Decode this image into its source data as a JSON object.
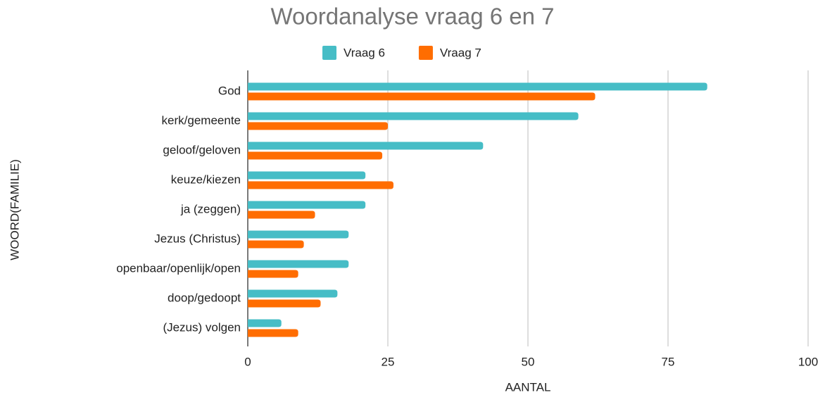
{
  "chart_data": {
    "type": "hbar",
    "title": "Woordanalyse vraag 6 en 7",
    "x_label": "AANTAL",
    "y_label": "WOORD(FAMILIE)",
    "categories": [
      "God",
      "kerk/gemeente",
      "geloof/geloven",
      "keuze/kiezen",
      "ja (zeggen)",
      "Jezus (Christus)",
      "openbaar/openlijk/open",
      "doop/gedoopt",
      "(Jezus) volgen"
    ],
    "series": [
      {
        "name": "Vraag 6",
        "color": "#46bdc6",
        "values": [
          82,
          59,
          42,
          21,
          21,
          18,
          18,
          16,
          6
        ]
      },
      {
        "name": "Vraag 7",
        "color": "#ff6d01",
        "values": [
          62,
          25,
          24,
          26,
          12,
          10,
          9,
          13,
          9
        ]
      }
    ],
    "xlim": [
      0,
      100
    ],
    "xticks": [
      0,
      25,
      50,
      75,
      100
    ],
    "grid": true,
    "legend": "top"
  }
}
